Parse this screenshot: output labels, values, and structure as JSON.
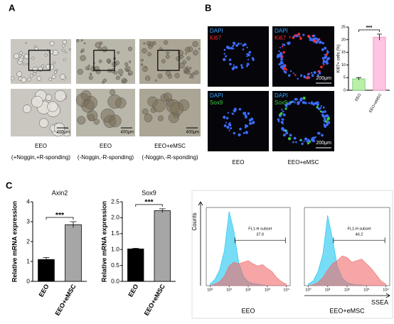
{
  "panel_labels": [
    "A",
    "B",
    "C"
  ],
  "panel_a": {
    "columns": [
      {
        "label": "EEO",
        "condition": "(+Noggin,+R-sponding)"
      },
      {
        "label": "EEO",
        "condition": "(-Noggin,-R-sponding)"
      },
      {
        "label": "EEO+eMSC",
        "condition": "(-Noggin,-R-sponding)"
      }
    ],
    "scale_bar": "400μm"
  },
  "panel_b": {
    "stains": [
      [
        "DAPI",
        "Ki67"
      ],
      [
        "DAPI",
        "Sox9"
      ]
    ],
    "columns": [
      "EEO",
      "EEO+eMSC"
    ],
    "scale_bar": "200μm"
  },
  "chart_data": [
    {
      "type": "bar",
      "y_label": "Ki67+ cells (%)",
      "categories": [
        "EEO",
        "EEO+eMSC"
      ],
      "values": [
        4.5,
        21
      ],
      "errors": [
        0.5,
        1.2
      ],
      "colors": [
        "#b9f0a9",
        "#ffc4e2"
      ],
      "edge_colors": [
        "#6cc46a",
        "#e98fc0"
      ],
      "ylim": [
        0,
        25
      ],
      "yticks": [
        0,
        5,
        10,
        15,
        20,
        25
      ],
      "annotation": "***"
    },
    {
      "type": "bar",
      "title": "Axin2",
      "y_label": "Relative mRNA expression",
      "categories": [
        "EEO",
        "EEO+eMSC"
      ],
      "values": [
        1.1,
        2.85
      ],
      "errors": [
        0.1,
        0.15
      ],
      "colors": [
        "#000000",
        "#a6a6a6"
      ],
      "edge_colors": [
        "#000000",
        "#000000"
      ],
      "ylim": [
        0,
        4
      ],
      "yticks": [
        0,
        1,
        2,
        3,
        4
      ],
      "annotation": "***"
    },
    {
      "type": "bar",
      "title": "Sox9",
      "y_label": "Relative mRNA expression",
      "categories": [
        "EEO",
        "EEO+eMSC"
      ],
      "values": [
        1.02,
        2.22
      ],
      "errors": [
        0.02,
        0.06
      ],
      "colors": [
        "#000000",
        "#a6a6a6"
      ],
      "edge_colors": [
        "#000000",
        "#000000"
      ],
      "ylim": [
        0,
        2.5
      ],
      "yticks": [
        {
          "value": 0,
          "label": "0.0"
        },
        {
          "value": 0.5,
          "label": "0.5"
        },
        {
          "value": 1,
          "label": "1.0"
        },
        {
          "value": 1.5,
          "label": "1.5"
        },
        {
          "value": 2,
          "label": "2.0"
        },
        {
          "value": 2.5,
          "label": "2.5"
        }
      ],
      "annotation": "***"
    },
    {
      "type": "area",
      "caption": "EEO",
      "y_label": "Counts",
      "gate_label": "FL1-H subset",
      "gate_value": "37.0",
      "gate": [
        1.3,
        3.95
      ],
      "x": [
        0,
        0.25,
        0.5,
        0.75,
        1,
        1.25,
        1.5,
        1.75,
        2,
        2.25,
        2.5,
        2.75,
        3,
        3.25,
        3.5,
        3.75,
        4
      ],
      "series": [
        {
          "color": "#1cc4ee",
          "values": [
            2,
            8,
            20,
            45,
            95,
            70,
            30,
            12,
            5,
            3,
            2,
            1,
            0,
            0,
            0,
            0,
            0
          ]
        },
        {
          "color": "#f06a6a",
          "values": [
            0,
            2,
            5,
            12,
            25,
            30,
            28,
            30,
            32,
            28,
            25,
            27,
            22,
            18,
            10,
            5,
            2
          ]
        }
      ],
      "xlim": [
        -0.2,
        4.2
      ],
      "ylim": [
        0,
        100
      ],
      "xticks": [
        {
          "value": 0,
          "label": "10⁰"
        },
        {
          "value": 1,
          "label": "10¹"
        },
        {
          "value": 2,
          "label": "10²"
        },
        {
          "value": 3,
          "label": "10³"
        },
        {
          "value": 4,
          "label": "10⁴"
        }
      ]
    },
    {
      "type": "area",
      "caption": "EEO+eMSC",
      "x_label": "SSEA",
      "gate_label": "FL1-H subset",
      "gate_value": "46.2",
      "gate": [
        1.3,
        3.95
      ],
      "x": [
        0,
        0.25,
        0.5,
        0.75,
        1,
        1.25,
        1.5,
        1.75,
        2,
        2.25,
        2.5,
        2.75,
        3,
        3.25,
        3.5,
        3.75,
        4
      ],
      "series": [
        {
          "color": "#1cc4ee",
          "values": [
            2,
            6,
            18,
            40,
            90,
            60,
            25,
            10,
            4,
            2,
            1,
            1,
            0,
            0,
            0,
            0,
            0
          ]
        },
        {
          "color": "#f06a6a",
          "values": [
            0,
            1,
            4,
            10,
            20,
            28,
            32,
            38,
            36,
            30,
            32,
            34,
            28,
            22,
            14,
            6,
            2
          ]
        }
      ],
      "xlim": [
        -0.2,
        4.2
      ],
      "ylim": [
        0,
        100
      ],
      "xticks": [
        {
          "value": 0,
          "label": "10⁰"
        },
        {
          "value": 1,
          "label": "10¹"
        },
        {
          "value": 2,
          "label": "10²"
        },
        {
          "value": 3,
          "label": "10³"
        },
        {
          "value": 4,
          "label": "10⁴"
        }
      ]
    }
  ]
}
